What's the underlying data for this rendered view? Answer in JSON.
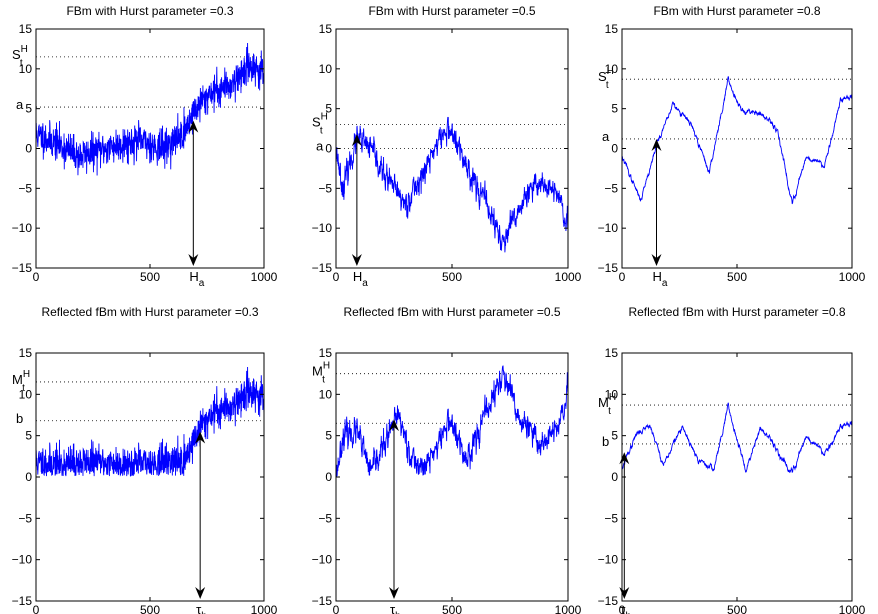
{
  "figure": {
    "panels": [
      {
        "title": "FBm with Hurst parameter =0.3",
        "type": "line",
        "xlim": [
          0,
          1000
        ],
        "ylim": [
          -15,
          15
        ],
        "xticks": [
          "0",
          "500",
          "1000"
        ],
        "yticks": [
          "15",
          "10",
          "5",
          "0",
          "-5",
          "-10",
          "-15"
        ],
        "level_label": "a",
        "level": 5.2,
        "max_label_main": "S",
        "max_label_sup": "H",
        "max_label_sub": "t",
        "max_level": 11.5,
        "time_label_main": "H",
        "time_label_sub": "a",
        "time": 690,
        "arrow_top": 3.5,
        "hurst": 0.3,
        "start": 1.8,
        "end": 9.5,
        "reflected": false,
        "seed": 11,
        "anchors": [
          [
            0,
            1.8
          ],
          [
            100,
            0.5
          ],
          [
            190,
            -1
          ],
          [
            300,
            0
          ],
          [
            450,
            1
          ],
          [
            560,
            0
          ],
          [
            650,
            2
          ],
          [
            690,
            4.5
          ],
          [
            760,
            7
          ],
          [
            850,
            8
          ],
          [
            940,
            10.5
          ],
          [
            1000,
            9.5
          ]
        ]
      },
      {
        "title": "FBm with Hurst parameter =0.5",
        "type": "line",
        "xlim": [
          0,
          1000
        ],
        "ylim": [
          -15,
          15
        ],
        "xticks": [
          "0",
          "500",
          "1000"
        ],
        "yticks": [
          "15",
          "10",
          "5",
          "0",
          "-5",
          "-10",
          "-15"
        ],
        "level_label": "a",
        "level": 0,
        "max_label_main": "S",
        "max_label_sup": "H",
        "max_label_sub": "t",
        "max_level": 3,
        "time_label_main": "H",
        "time_label_sub": "a",
        "time": 90,
        "arrow_top": 1.8,
        "hurst": 0.5,
        "start": 0,
        "end": -10.5,
        "reflected": false,
        "seed": 23,
        "anchors": [
          [
            0,
            0
          ],
          [
            30,
            -5
          ],
          [
            90,
            1.2
          ],
          [
            150,
            0
          ],
          [
            200,
            -3
          ],
          [
            300,
            -7
          ],
          [
            380,
            -3
          ],
          [
            440,
            1
          ],
          [
            490,
            2.5
          ],
          [
            560,
            -2
          ],
          [
            650,
            -7
          ],
          [
            720,
            -12
          ],
          [
            800,
            -7
          ],
          [
            880,
            -4
          ],
          [
            960,
            -6
          ],
          [
            1000,
            -10.5
          ]
        ]
      },
      {
        "title": "FBm with Hurst parameter =0.8",
        "type": "line",
        "xlim": [
          0,
          1000
        ],
        "ylim": [
          -15,
          15
        ],
        "xticks": [
          "0",
          "500",
          "1000"
        ],
        "yticks": [
          "15",
          "10",
          "5",
          "0",
          "-5",
          "-10",
          "-15"
        ],
        "level_label": "a",
        "level": 1.2,
        "max_label_main": "S",
        "max_label_sup": "H",
        "max_label_sub": "t",
        "max_level": 8.7,
        "time_label_main": "H",
        "time_label_sub": "a",
        "time": 150,
        "arrow_top": 1.2,
        "hurst": 0.8,
        "start": -1,
        "end": 6.5,
        "reflected": false,
        "seed": 37,
        "anchors": [
          [
            0,
            -1
          ],
          [
            80,
            -6.5
          ],
          [
            150,
            0.5
          ],
          [
            220,
            5.5
          ],
          [
            300,
            3
          ],
          [
            380,
            -3
          ],
          [
            460,
            8.5
          ],
          [
            520,
            5
          ],
          [
            600,
            4.5
          ],
          [
            680,
            2
          ],
          [
            740,
            -7
          ],
          [
            800,
            -1
          ],
          [
            880,
            -2
          ],
          [
            950,
            6
          ],
          [
            1000,
            6.5
          ]
        ]
      },
      {
        "title": "Reflected fBm with Hurst parameter =0.3",
        "type": "line",
        "xlim": [
          0,
          1000
        ],
        "ylim": [
          -15,
          15
        ],
        "xticks": [
          "0",
          "500",
          "1000"
        ],
        "yticks": [
          "15",
          "10",
          "5",
          "0",
          "-5",
          "-10",
          "-15"
        ],
        "level_label": "b",
        "level": 6.8,
        "max_label_main": "M",
        "max_label_sup": "H",
        "max_label_sub": "t",
        "max_level": 11.5,
        "time_label_main": "τ",
        "time_label_sub": "b",
        "time": 720,
        "arrow_top": 5.5,
        "hurst": 0.3,
        "start": 1.8,
        "end": 9.5,
        "reflected": true,
        "seed": 11,
        "anchors": [
          [
            0,
            1.8
          ],
          [
            100,
            1.5
          ],
          [
            250,
            1.8
          ],
          [
            400,
            1.5
          ],
          [
            560,
            1.8
          ],
          [
            650,
            2
          ],
          [
            720,
            6
          ],
          [
            780,
            8
          ],
          [
            850,
            8.5
          ],
          [
            940,
            10.5
          ],
          [
            1000,
            9.5
          ]
        ]
      },
      {
        "title": "Reflected fBm with Hurst parameter =0.5",
        "type": "line",
        "xlim": [
          0,
          1000
        ],
        "ylim": [
          -15,
          15
        ],
        "xticks": [
          "0",
          "500",
          "1000"
        ],
        "yticks": [
          "15",
          "10",
          "5",
          "0",
          "-5",
          "-10",
          "-15"
        ],
        "level_label": "",
        "level": 6.5,
        "max_label_main": "M",
        "max_label_sup": "H",
        "max_label_sub": "t",
        "max_level": 12.5,
        "time_label_main": "τ",
        "time_label_sub": "b",
        "time": 250,
        "arrow_top": 7,
        "hurst": 0.5,
        "start": 0,
        "end": 10,
        "reflected": true,
        "seed": 23,
        "anchors": [
          [
            0,
            0
          ],
          [
            30,
            5
          ],
          [
            90,
            5.5
          ],
          [
            150,
            0.5
          ],
          [
            200,
            3.5
          ],
          [
            270,
            7.5
          ],
          [
            330,
            2
          ],
          [
            380,
            1
          ],
          [
            440,
            4
          ],
          [
            490,
            7
          ],
          [
            560,
            2
          ],
          [
            620,
            6
          ],
          [
            720,
            12.5
          ],
          [
            790,
            7
          ],
          [
            880,
            4
          ],
          [
            960,
            6
          ],
          [
            1000,
            10
          ]
        ]
      },
      {
        "title": "Reflected fBm with Hurst parameter =0.8",
        "type": "line",
        "xlim": [
          0,
          1000
        ],
        "ylim": [
          -15,
          15
        ],
        "xticks": [
          "0",
          "500",
          "1000"
        ],
        "yticks": [
          "15",
          "10",
          "5",
          "0",
          "-5",
          "-10",
          "-15"
        ],
        "level_label": "b",
        "level": 4,
        "max_label_main": "M",
        "max_label_sup": "H",
        "max_label_sub": "t",
        "max_level": 8.7,
        "time_label_main": "τ",
        "time_label_sub": "b",
        "time": 10,
        "arrow_top": 3,
        "hurst": 0.8,
        "start": 1,
        "end": 6.5,
        "reflected": true,
        "seed": 37,
        "anchors": [
          [
            0,
            1
          ],
          [
            60,
            5
          ],
          [
            120,
            6.5
          ],
          [
            180,
            1.5
          ],
          [
            260,
            6
          ],
          [
            330,
            2
          ],
          [
            400,
            1
          ],
          [
            460,
            8.5
          ],
          [
            540,
            1
          ],
          [
            600,
            6
          ],
          [
            680,
            3
          ],
          [
            740,
            0.5
          ],
          [
            800,
            5
          ],
          [
            880,
            3
          ],
          [
            950,
            6
          ],
          [
            1000,
            6.5
          ]
        ]
      }
    ]
  },
  "chart_data": [
    {
      "type": "line",
      "title": "FBm with Hurst parameter =0.3",
      "xlim": [
        0,
        1000
      ],
      "ylim": [
        -15,
        15
      ],
      "x": [
        0,
        100,
        190,
        300,
        450,
        560,
        650,
        690,
        760,
        850,
        940,
        1000
      ],
      "series": [
        {
          "values": [
            1.8,
            0.5,
            -1,
            0,
            1,
            0,
            2,
            4.5,
            7,
            8,
            10.5,
            9.5
          ]
        }
      ],
      "annotations": {
        "a": 5.2,
        "max": 11.5,
        "H_a": 690
      }
    },
    {
      "type": "line",
      "title": "FBm with Hurst parameter =0.5",
      "xlim": [
        0,
        1000
      ],
      "ylim": [
        -15,
        15
      ],
      "x": [
        0,
        30,
        90,
        150,
        200,
        300,
        380,
        440,
        490,
        560,
        650,
        720,
        800,
        880,
        960,
        1000
      ],
      "series": [
        {
          "values": [
            0,
            -5,
            1.2,
            0,
            -3,
            -7,
            -3,
            1,
            2.5,
            -2,
            -7,
            -12,
            -7,
            -4,
            -6,
            -10.5
          ]
        }
      ],
      "annotations": {
        "a": 0,
        "max": 3,
        "H_a": 90
      }
    },
    {
      "type": "line",
      "title": "FBm with Hurst parameter =0.8",
      "xlim": [
        0,
        1000
      ],
      "ylim": [
        -15,
        15
      ],
      "x": [
        0,
        80,
        150,
        220,
        300,
        380,
        460,
        520,
        600,
        680,
        740,
        800,
        880,
        950,
        1000
      ],
      "series": [
        {
          "values": [
            -1,
            -6.5,
            0.5,
            5.5,
            3,
            -3,
            8.5,
            5,
            4.5,
            2,
            -7,
            -1,
            -2,
            6,
            6.5
          ]
        }
      ],
      "annotations": {
        "a": 1.2,
        "max": 8.7,
        "H_a": 150
      }
    },
    {
      "type": "line",
      "title": "Reflected fBm with Hurst parameter =0.3",
      "xlim": [
        0,
        1000
      ],
      "ylim": [
        -15,
        15
      ],
      "x": [
        0,
        100,
        250,
        400,
        560,
        650,
        720,
        780,
        850,
        940,
        1000
      ],
      "series": [
        {
          "values": [
            1.8,
            1.5,
            1.8,
            1.5,
            1.8,
            2,
            6,
            8,
            8.5,
            10.5,
            9.5
          ]
        }
      ],
      "annotations": {
        "b": 6.8,
        "max": 11.5,
        "tau_b": 720
      }
    },
    {
      "type": "line",
      "title": "Reflected fBm with Hurst parameter =0.5",
      "xlim": [
        0,
        1000
      ],
      "ylim": [
        -15,
        15
      ],
      "x": [
        0,
        30,
        90,
        150,
        200,
        270,
        330,
        380,
        440,
        490,
        560,
        620,
        720,
        790,
        880,
        960,
        1000
      ],
      "series": [
        {
          "values": [
            0,
            5,
            5.5,
            0.5,
            3.5,
            7.5,
            2,
            1,
            4,
            7,
            2,
            6,
            12.5,
            7,
            4,
            6,
            10
          ]
        }
      ],
      "annotations": {
        "b": 6.5,
        "max": 12.5,
        "tau_b": 250
      }
    },
    {
      "type": "line",
      "title": "Reflected fBm with Hurst parameter =0.8",
      "xlim": [
        0,
        1000
      ],
      "ylim": [
        -15,
        15
      ],
      "x": [
        0,
        60,
        120,
        180,
        260,
        330,
        400,
        460,
        540,
        600,
        680,
        740,
        800,
        880,
        950,
        1000
      ],
      "series": [
        {
          "values": [
            1,
            5,
            6.5,
            1.5,
            6,
            2,
            1,
            8.5,
            1,
            6,
            3,
            0.5,
            5,
            3,
            6,
            6.5
          ]
        }
      ],
      "annotations": {
        "b": 4,
        "max": 8.7,
        "tau_b": 10
      }
    }
  ]
}
